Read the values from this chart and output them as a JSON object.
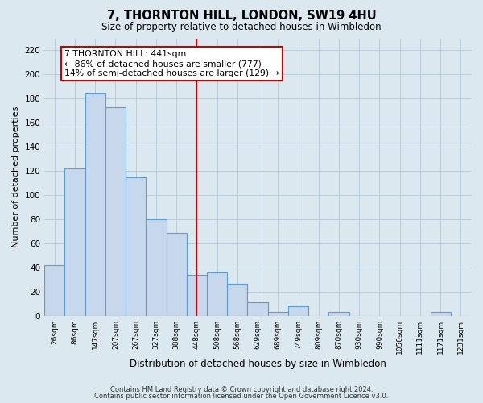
{
  "title": "7, THORNTON HILL, LONDON, SW19 4HU",
  "subtitle": "Size of property relative to detached houses in Wimbledon",
  "xlabel": "Distribution of detached houses by size in Wimbledon",
  "ylabel": "Number of detached properties",
  "bar_labels": [
    "26sqm",
    "86sqm",
    "147sqm",
    "207sqm",
    "267sqm",
    "327sqm",
    "388sqm",
    "448sqm",
    "508sqm",
    "568sqm",
    "629sqm",
    "689sqm",
    "749sqm",
    "809sqm",
    "870sqm",
    "930sqm",
    "990sqm",
    "1050sqm",
    "1111sqm",
    "1171sqm",
    "1231sqm"
  ],
  "bar_values": [
    42,
    122,
    184,
    173,
    115,
    80,
    69,
    34,
    36,
    27,
    11,
    3,
    8,
    0,
    3,
    0,
    0,
    0,
    0,
    3,
    0
  ],
  "bar_color": "#c8d8ec",
  "bar_edge_color": "#5a9fd4",
  "vline_x_index": 7,
  "vline_color": "#cc0000",
  "annotation_line1": "7 THORNTON HILL: 441sqm",
  "annotation_line2": "← 86% of detached houses are smaller (777)",
  "annotation_line3": "14% of semi-detached houses are larger (129) →",
  "annotation_box_edge_color": "#cc0000",
  "ylim": [
    0,
    230
  ],
  "yticks": [
    0,
    20,
    40,
    60,
    80,
    100,
    120,
    140,
    160,
    180,
    200,
    220
  ],
  "footnote1": "Contains HM Land Registry data © Crown copyright and database right 2024.",
  "footnote2": "Contains public sector information licensed under the Open Government Licence v3.0.",
  "bg_color": "#dce8f0",
  "plot_bg_color": "#dce8f0",
  "grid_color": "#b8ccd8"
}
